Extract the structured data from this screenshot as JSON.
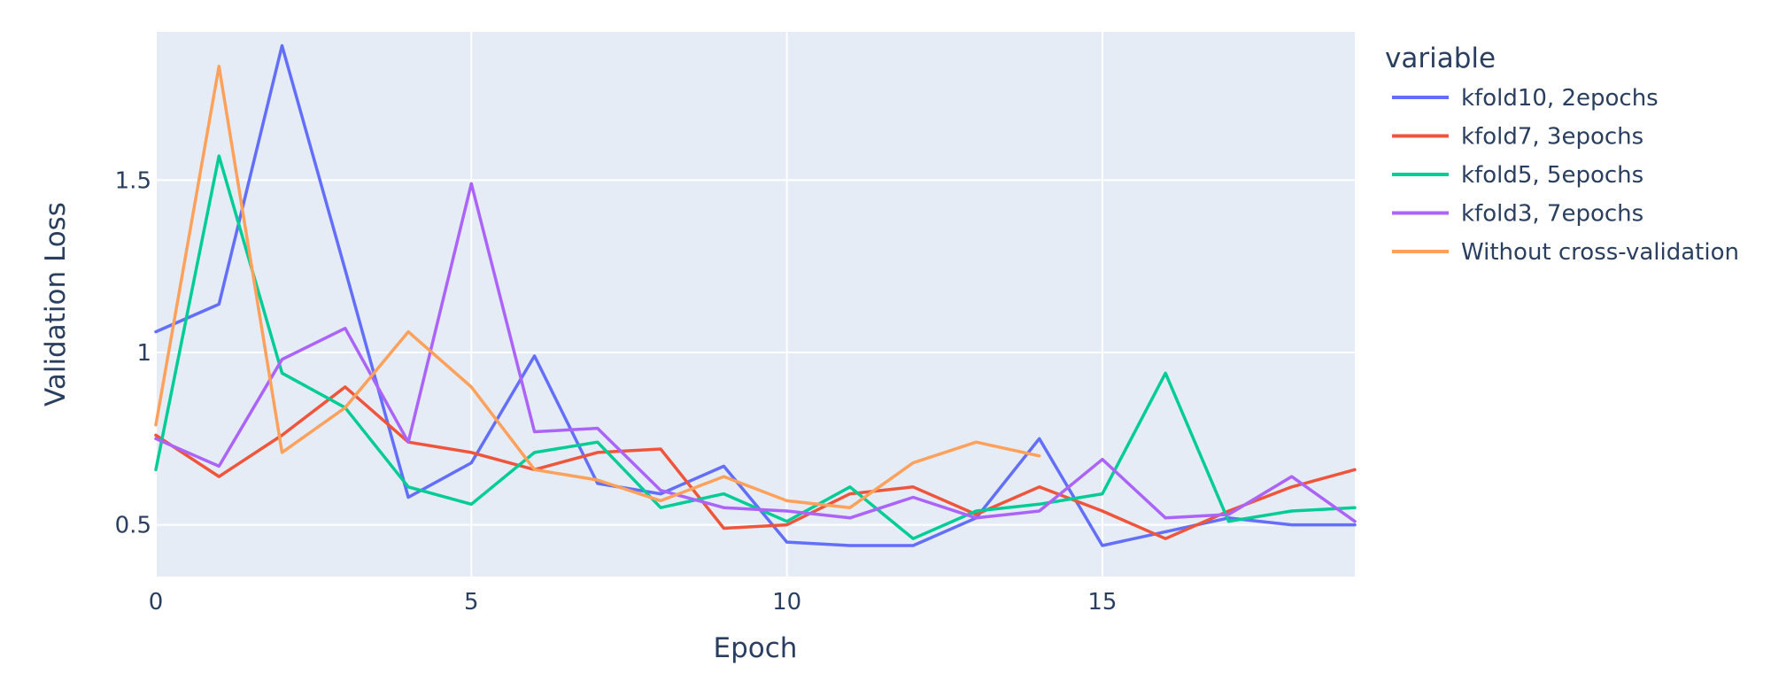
{
  "chart_data": {
    "type": "line",
    "xlabel": "Epoch",
    "ylabel": "Validation Loss",
    "legend_title": "variable",
    "legend_position": "right",
    "grid": true,
    "colors": {
      "plot_bg": "#e5ecf6",
      "grid": "#ffffff",
      "text": "#2a3f5f"
    },
    "xlim": [
      0,
      19
    ],
    "ylim": [
      0.35,
      1.93
    ],
    "x_ticks": [
      0,
      5,
      10,
      15
    ],
    "y_ticks": [
      0.5,
      1,
      1.5
    ],
    "x_tick_labels": [
      "0",
      "5",
      "10",
      "15"
    ],
    "y_tick_labels": [
      "0.5",
      "1",
      "1.5"
    ],
    "series": [
      {
        "name": "kfold10, 2epochs",
        "color": "#636efa",
        "x": [
          0,
          1,
          2,
          3,
          4,
          5,
          6,
          7,
          8,
          9,
          10,
          11,
          12,
          13,
          14,
          15,
          16,
          17,
          18,
          19
        ],
        "y": [
          1.06,
          1.14,
          1.89,
          1.24,
          0.58,
          0.68,
          0.99,
          0.62,
          0.59,
          0.67,
          0.45,
          0.44,
          0.44,
          0.52,
          0.75,
          0.44,
          0.48,
          0.52,
          0.5,
          0.5
        ]
      },
      {
        "name": "kfold7, 3epochs",
        "color": "#ef553b",
        "x": [
          0,
          1,
          2,
          3,
          4,
          5,
          6,
          7,
          8,
          9,
          10,
          11,
          12,
          13,
          14,
          15,
          16,
          17,
          18,
          19
        ],
        "y": [
          0.76,
          0.64,
          0.76,
          0.9,
          0.74,
          0.71,
          0.66,
          0.71,
          0.72,
          0.49,
          0.5,
          0.59,
          0.61,
          0.53,
          0.61,
          0.54,
          0.46,
          0.54,
          0.61,
          0.66
        ]
      },
      {
        "name": "kfold5, 5epochs",
        "color": "#00cc96",
        "x": [
          0,
          1,
          2,
          3,
          4,
          5,
          6,
          7,
          8,
          9,
          10,
          11,
          12,
          13,
          14,
          15,
          16,
          17,
          18,
          19
        ],
        "y": [
          0.66,
          1.57,
          0.94,
          0.84,
          0.61,
          0.56,
          0.71,
          0.74,
          0.55,
          0.59,
          0.51,
          0.61,
          0.46,
          0.54,
          0.56,
          0.59,
          0.94,
          0.51,
          0.54,
          0.55
        ]
      },
      {
        "name": "kfold3, 7epochs",
        "color": "#ab63fa",
        "x": [
          0,
          1,
          2,
          3,
          4,
          5,
          6,
          7,
          8,
          9,
          10,
          11,
          12,
          13,
          14,
          15,
          16,
          17,
          18,
          19
        ],
        "y": [
          0.75,
          0.67,
          0.98,
          1.07,
          0.74,
          1.49,
          0.77,
          0.78,
          0.6,
          0.55,
          0.54,
          0.52,
          0.58,
          0.52,
          0.54,
          0.69,
          0.52,
          0.53,
          0.64,
          0.51
        ]
      },
      {
        "name": "Without cross-validation",
        "color": "#ffa15a",
        "x": [
          0,
          1,
          2,
          3,
          4,
          5,
          6,
          7,
          8,
          9,
          10,
          11,
          12,
          13,
          14
        ],
        "y": [
          0.79,
          1.83,
          0.71,
          0.84,
          1.06,
          0.9,
          0.66,
          0.63,
          0.57,
          0.64,
          0.57,
          0.55,
          0.68,
          0.74,
          0.7
        ]
      }
    ]
  }
}
